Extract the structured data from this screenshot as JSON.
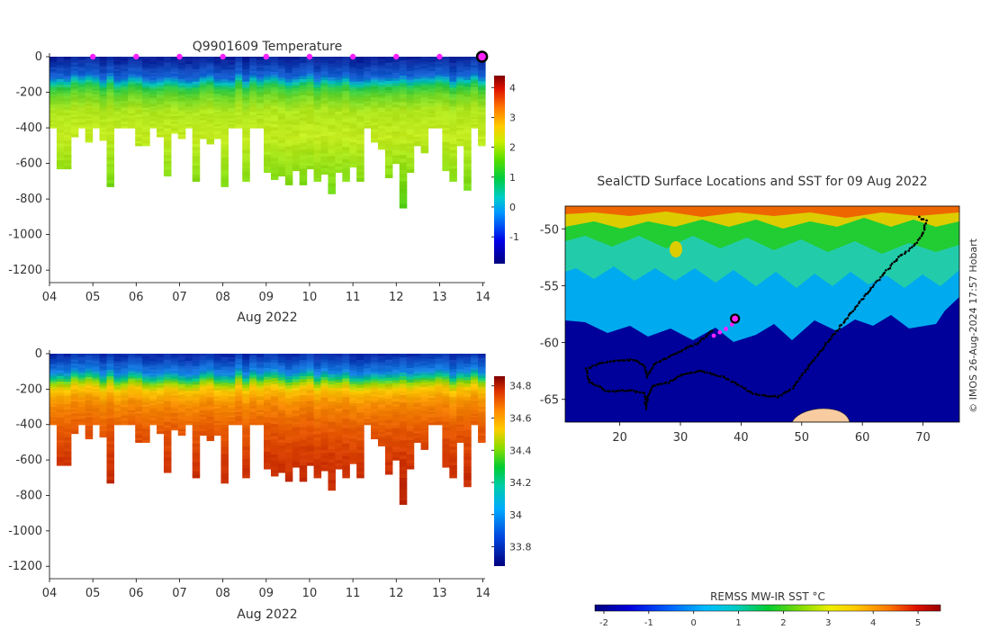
{
  "chart_data": [
    {
      "type": "heatmap",
      "title": "Q9901609  Temperature",
      "xlabel": "Aug 2022",
      "ylabel": "",
      "x_ticks": [
        "04",
        "05",
        "06",
        "07",
        "08",
        "09",
        "10",
        "11",
        "12",
        "13",
        "14"
      ],
      "x_range": [
        4,
        14.05
      ],
      "y_ticks": [
        0,
        -200,
        -400,
        -600,
        -800,
        -1000,
        -1200
      ],
      "ylim": [
        -1270,
        0
      ],
      "colorbar": {
        "ticks": [
          4,
          3,
          2,
          1,
          0,
          -1
        ],
        "range": [
          -1.9,
          4.4
        ]
      },
      "surface_markers_days": [
        5,
        6,
        7,
        8,
        9,
        10,
        11,
        12,
        13
      ],
      "latest_marker_day": 14,
      "profile_bottom_depths": [
        400,
        630,
        630,
        450,
        400,
        480,
        400,
        470,
        730,
        400,
        400,
        400,
        500,
        500,
        400,
        450,
        670,
        430,
        460,
        400,
        700,
        460,
        490,
        460,
        730,
        400,
        400,
        700,
        400,
        400,
        650,
        690,
        670,
        720,
        640,
        720,
        630,
        700,
        660,
        770,
        650,
        700,
        620,
        700,
        400,
        480,
        520,
        680,
        600,
        850,
        650,
        500,
        540,
        400,
        400,
        640,
        700,
        500,
        750,
        400,
        500
      ]
    },
    {
      "type": "heatmap",
      "title": "",
      "xlabel": "Aug 2022",
      "ylabel": "",
      "x_ticks": [
        "04",
        "05",
        "06",
        "07",
        "08",
        "09",
        "10",
        "11",
        "12",
        "13",
        "14"
      ],
      "x_range": [
        4,
        14.05
      ],
      "y_ticks": [
        0,
        -200,
        -400,
        -600,
        -800,
        -1000,
        -1200
      ],
      "ylim": [
        -1270,
        0
      ],
      "colorbar": {
        "ticks": [
          "34.8",
          "34.6",
          "34.4",
          "34.2",
          "34",
          "33.8"
        ],
        "range": [
          33.68,
          34.86
        ]
      },
      "profile_bottom_depths": [
        400,
        630,
        630,
        450,
        400,
        480,
        400,
        470,
        730,
        400,
        400,
        400,
        500,
        500,
        400,
        450,
        670,
        430,
        460,
        400,
        700,
        460,
        490,
        460,
        730,
        400,
        400,
        700,
        400,
        400,
        650,
        690,
        670,
        720,
        640,
        720,
        630,
        700,
        660,
        770,
        650,
        700,
        620,
        700,
        400,
        480,
        520,
        680,
        600,
        850,
        650,
        500,
        540,
        400,
        400,
        640,
        700,
        500,
        750,
        400,
        500
      ]
    },
    {
      "type": "scatter",
      "title": "SealCTD Surface Locations and SST for 09 Aug 2022",
      "x_ticks": [
        20,
        30,
        40,
        50,
        60,
        70
      ],
      "y_ticks": [
        -50,
        -55,
        -60,
        -65
      ],
      "xlim": [
        11,
        76
      ],
      "ylim": [
        -67,
        -48
      ],
      "track": [
        [
          69.5,
          -49.0
        ],
        [
          70.5,
          -49.3
        ],
        [
          70.0,
          -50.5
        ],
        [
          68.5,
          -51.5
        ],
        [
          66.0,
          -52.5
        ],
        [
          63.5,
          -54.0
        ],
        [
          61.0,
          -55.5
        ],
        [
          58.0,
          -57.5
        ],
        [
          55.0,
          -59.5
        ],
        [
          52.0,
          -61.5
        ],
        [
          48.5,
          -64.0
        ],
        [
          46.0,
          -64.8
        ],
        [
          42.0,
          -64.5
        ],
        [
          37.0,
          -63.0
        ],
        [
          33.0,
          -62.5
        ],
        [
          30.5,
          -62.8
        ],
        [
          28.0,
          -63.5
        ],
        [
          25.5,
          -63.8
        ],
        [
          24.5,
          -64.8
        ],
        [
          24.4,
          -65.8
        ],
        [
          24.0,
          -64.5
        ],
        [
          21.5,
          -64.2
        ],
        [
          18.0,
          -64.3
        ],
        [
          15.0,
          -63.5
        ],
        [
          14.5,
          -62.3
        ],
        [
          17.0,
          -61.8
        ],
        [
          20.0,
          -61.6
        ],
        [
          22.5,
          -61.5
        ],
        [
          24.0,
          -62.0
        ],
        [
          24.5,
          -63.0
        ],
        [
          25.5,
          -62.0
        ],
        [
          29.0,
          -61.0
        ],
        [
          33.0,
          -60.0
        ],
        [
          35.5,
          -58.8
        ]
      ],
      "recent_positions": [
        [
          35.5,
          -59.4
        ],
        [
          36.5,
          -59.1
        ],
        [
          37.5,
          -58.8
        ],
        [
          38.5,
          -58.4
        ]
      ],
      "current_position": [
        39.0,
        -57.9
      ],
      "credit": "© IMOS 26-Aug-2024 17:57 Hobart"
    }
  ],
  "sst_colorbar": {
    "label": "REMSS MW-IR SST °C",
    "ticks": [
      "-2",
      "-1",
      "0",
      "1",
      "2",
      "3",
      "4",
      "5"
    ],
    "range": [
      -2.2,
      5.5
    ]
  }
}
